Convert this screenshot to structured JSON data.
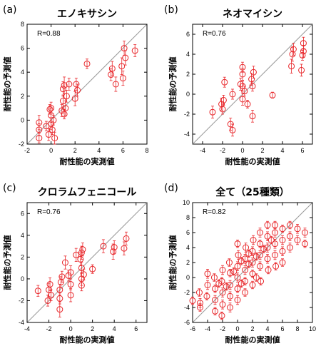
{
  "chart_data": [
    {
      "panel": "(a)",
      "type": "scatter",
      "title": "エノキサシン",
      "xlabel": "耐性能の実測値",
      "ylabel": "耐性能の予測値",
      "annotation": "R=0.88",
      "xlim": [
        -2,
        8
      ],
      "ylim": [
        -2,
        8
      ],
      "xticks": [
        -2,
        0,
        2,
        4,
        6,
        8
      ],
      "yticks": [
        -2,
        0,
        2,
        4,
        6,
        8
      ],
      "grid": false,
      "diagonal": true,
      "color": "#e8262a",
      "points": [
        {
          "x": -1.0,
          "y": -0.2,
          "err": 0.6
        },
        {
          "x": -1.0,
          "y": -0.8,
          "err": 0.5
        },
        {
          "x": -1.0,
          "y": -1.5,
          "err": 0.4
        },
        {
          "x": -0.4,
          "y": -0.5,
          "err": 0.4
        },
        {
          "x": -0.2,
          "y": -1.2,
          "err": 0.5
        },
        {
          "x": -0.1,
          "y": 0.9,
          "err": 0.4
        },
        {
          "x": 0.0,
          "y": 0.4,
          "err": 0.6
        },
        {
          "x": 0.0,
          "y": -0.3,
          "err": 0.5
        },
        {
          "x": 0.0,
          "y": 1.0,
          "err": 0.5
        },
        {
          "x": 0.2,
          "y": 0.0,
          "err": 0.4
        },
        {
          "x": 0.3,
          "y": -1.5,
          "err": 0.5
        },
        {
          "x": 0.1,
          "y": -0.8,
          "err": 0.4
        },
        {
          "x": 0.9,
          "y": 0.8,
          "err": 0.5
        },
        {
          "x": 1.0,
          "y": 1.6,
          "err": 0.5
        },
        {
          "x": 1.0,
          "y": 2.6,
          "err": 0.6
        },
        {
          "x": 1.1,
          "y": 2.9,
          "err": 0.7
        },
        {
          "x": 1.1,
          "y": 0.5,
          "err": 0.4
        },
        {
          "x": 1.2,
          "y": 1.0,
          "err": 0.6
        },
        {
          "x": 1.3,
          "y": 2.0,
          "err": 0.5
        },
        {
          "x": 1.5,
          "y": 3.0,
          "err": 0.5
        },
        {
          "x": 2.0,
          "y": 1.8,
          "err": 0.6
        },
        {
          "x": 2.1,
          "y": 3.0,
          "err": 0.5
        },
        {
          "x": 2.2,
          "y": 2.5,
          "err": 0.5
        },
        {
          "x": 3.0,
          "y": 4.7,
          "err": 0.4
        },
        {
          "x": 5.0,
          "y": 3.8,
          "err": 0.5
        },
        {
          "x": 5.1,
          "y": 4.3,
          "err": 0.6
        },
        {
          "x": 5.4,
          "y": 3.0,
          "err": 0.6
        },
        {
          "x": 5.9,
          "y": 4.5,
          "err": 0.7
        },
        {
          "x": 6.0,
          "y": 3.5,
          "err": 0.6
        },
        {
          "x": 6.1,
          "y": 6.0,
          "err": 0.6
        },
        {
          "x": 6.2,
          "y": 5.2,
          "err": 0.6
        },
        {
          "x": 7.0,
          "y": 5.8,
          "err": 0.5
        }
      ]
    },
    {
      "panel": "(b)",
      "type": "scatter",
      "title": "ネオマイシン",
      "xlabel": "耐性能の実測値",
      "ylabel": "耐性能の予測値",
      "annotation": "R=0.76",
      "xlim": [
        -5,
        7
      ],
      "ylim": [
        -5,
        7
      ],
      "xticks": [
        -4,
        -2,
        0,
        2,
        4,
        6
      ],
      "yticks": [
        -4,
        -2,
        0,
        2,
        4,
        6
      ],
      "grid": false,
      "diagonal": true,
      "color": "#e8262a",
      "points": [
        {
          "x": -3.0,
          "y": -1.8,
          "err": 0.6
        },
        {
          "x": -2.1,
          "y": -1.0,
          "err": 0.6
        },
        {
          "x": -2.0,
          "y": -1.5,
          "err": 0.5
        },
        {
          "x": -1.9,
          "y": -0.6,
          "err": 0.5
        },
        {
          "x": -1.8,
          "y": 1.2,
          "err": 0.5
        },
        {
          "x": -1.2,
          "y": -3.0,
          "err": 0.6
        },
        {
          "x": -1.0,
          "y": -3.6,
          "err": 0.6
        },
        {
          "x": -1.0,
          "y": 0.0,
          "err": 0.5
        },
        {
          "x": -0.2,
          "y": 1.0,
          "err": 0.6
        },
        {
          "x": 0.0,
          "y": 0.8,
          "err": 0.5
        },
        {
          "x": 0.0,
          "y": -0.5,
          "err": 0.6
        },
        {
          "x": 0.0,
          "y": 2.0,
          "err": 0.6
        },
        {
          "x": 0.0,
          "y": 2.7,
          "err": 0.5
        },
        {
          "x": 0.2,
          "y": 0.3,
          "err": 0.5
        },
        {
          "x": 0.5,
          "y": -1.0,
          "err": 0.4
        },
        {
          "x": 0.9,
          "y": 1.5,
          "err": 0.6
        },
        {
          "x": 1.0,
          "y": -2.2,
          "err": 0.6
        },
        {
          "x": 1.0,
          "y": 0.8,
          "err": 0.5
        },
        {
          "x": 1.1,
          "y": 2.2,
          "err": 0.6
        },
        {
          "x": 3.0,
          "y": -0.1,
          "err": 0.3
        },
        {
          "x": 4.9,
          "y": 2.8,
          "err": 0.7
        },
        {
          "x": 5.0,
          "y": 4.0,
          "err": 0.7
        },
        {
          "x": 5.1,
          "y": 4.5,
          "err": 0.6
        },
        {
          "x": 5.9,
          "y": 2.4,
          "err": 0.6
        },
        {
          "x": 6.0,
          "y": 3.9,
          "err": 0.5
        },
        {
          "x": 6.1,
          "y": 4.3,
          "err": 0.6
        },
        {
          "x": 6.1,
          "y": 5.1,
          "err": 0.6
        }
      ]
    },
    {
      "panel": "(c)",
      "type": "scatter",
      "title": "クロラムフェニコール",
      "xlabel": "耐性能の実測値",
      "ylabel": "耐性能の予測値",
      "annotation": "R=0.76",
      "xlim": [
        -4,
        7
      ],
      "ylim": [
        -4,
        7
      ],
      "xticks": [
        -4,
        -2,
        0,
        2,
        4,
        6
      ],
      "yticks": [
        -4,
        -2,
        0,
        2,
        4,
        6
      ],
      "grid": false,
      "diagonal": true,
      "color": "#e8262a",
      "points": [
        {
          "x": -3.0,
          "y": -1.1,
          "err": 0.5
        },
        {
          "x": -2.1,
          "y": -2.0,
          "err": 0.5
        },
        {
          "x": -2.0,
          "y": -1.0,
          "err": 0.6
        },
        {
          "x": -1.9,
          "y": -0.5,
          "err": 0.6
        },
        {
          "x": -1.8,
          "y": -1.5,
          "err": 0.5
        },
        {
          "x": -1.0,
          "y": -1.0,
          "err": 0.5
        },
        {
          "x": -1.0,
          "y": -1.8,
          "err": 0.5
        },
        {
          "x": -1.0,
          "y": -2.8,
          "err": 0.7
        },
        {
          "x": -0.9,
          "y": -0.3,
          "err": 0.5
        },
        {
          "x": -0.8,
          "y": 0.2,
          "err": 0.5
        },
        {
          "x": -0.5,
          "y": 1.5,
          "err": 0.6
        },
        {
          "x": -0.2,
          "y": 0.3,
          "err": 0.5
        },
        {
          "x": 0.0,
          "y": -1.5,
          "err": 0.6
        },
        {
          "x": 0.0,
          "y": -0.5,
          "err": 0.5
        },
        {
          "x": 0.0,
          "y": 0.6,
          "err": 0.6
        },
        {
          "x": 0.5,
          "y": 2.2,
          "err": 0.6
        },
        {
          "x": 0.9,
          "y": 1.8,
          "err": 0.6
        },
        {
          "x": 1.0,
          "y": 2.4,
          "err": 0.6
        },
        {
          "x": 1.0,
          "y": 1.0,
          "err": 0.5
        },
        {
          "x": 1.0,
          "y": 0.0,
          "err": 0.6
        },
        {
          "x": 1.0,
          "y": -0.6,
          "err": 0.5
        },
        {
          "x": 1.1,
          "y": 2.7,
          "err": 0.6
        },
        {
          "x": 1.2,
          "y": 0.4,
          "err": 0.5
        },
        {
          "x": 2.0,
          "y": 0.9,
          "err": 0.4
        },
        {
          "x": 3.0,
          "y": 3.0,
          "err": 0.6
        },
        {
          "x": 3.9,
          "y": 2.5,
          "err": 0.7
        },
        {
          "x": 4.0,
          "y": 2.9,
          "err": 0.6
        },
        {
          "x": 4.9,
          "y": 2.8,
          "err": 0.6
        },
        {
          "x": 5.1,
          "y": 3.7,
          "err": 0.6
        }
      ]
    },
    {
      "panel": "(d)",
      "type": "scatter",
      "title": "全て（25種類）",
      "xlabel": "耐性能の実測値",
      "ylabel": "耐性能の予測値",
      "annotation": "R=0.82",
      "xlim": [
        -6,
        10
      ],
      "ylim": [
        -6,
        10
      ],
      "xticks": [
        -6,
        -4,
        -2,
        0,
        2,
        4,
        6,
        8,
        10
      ],
      "yticks": [
        -6,
        -4,
        -2,
        0,
        2,
        4,
        6,
        8,
        10
      ],
      "grid": false,
      "diagonal": true,
      "color": "#e8262a",
      "points": [
        {
          "x": -6.0,
          "y": -3.1,
          "err": 0.5
        },
        {
          "x": -5.1,
          "y": -2.0,
          "err": 0.5
        },
        {
          "x": -5.0,
          "y": -3.4,
          "err": 0.6
        },
        {
          "x": -5.0,
          "y": -4.0,
          "err": 0.5
        },
        {
          "x": -4.0,
          "y": 0.5,
          "err": 0.6
        },
        {
          "x": -4.0,
          "y": -1.0,
          "err": 0.6
        },
        {
          "x": -4.1,
          "y": -2.5,
          "err": 0.5
        },
        {
          "x": -3.0,
          "y": -3.0,
          "err": 0.6
        },
        {
          "x": -3.0,
          "y": -1.5,
          "err": 0.5
        },
        {
          "x": -3.1,
          "y": 0.0,
          "err": 0.5
        },
        {
          "x": -3.0,
          "y": -4.5,
          "err": 0.5
        },
        {
          "x": -2.0,
          "y": -2.0,
          "err": 0.6
        },
        {
          "x": -2.0,
          "y": -3.6,
          "err": 0.6
        },
        {
          "x": -2.1,
          "y": -0.5,
          "err": 0.5
        },
        {
          "x": -2.0,
          "y": 1.0,
          "err": 0.6
        },
        {
          "x": -2.1,
          "y": -5.1,
          "err": 0.5
        },
        {
          "x": -1.0,
          "y": -1.0,
          "err": 0.6
        },
        {
          "x": -1.0,
          "y": -2.5,
          "err": 0.6
        },
        {
          "x": -1.0,
          "y": 0.6,
          "err": 0.5
        },
        {
          "x": -1.1,
          "y": 2.0,
          "err": 0.5
        },
        {
          "x": -1.0,
          "y": -4.0,
          "err": 0.6
        },
        {
          "x": 0.0,
          "y": 0.0,
          "err": 0.6
        },
        {
          "x": 0.0,
          "y": 1.5,
          "err": 0.6
        },
        {
          "x": 0.0,
          "y": -1.5,
          "err": 0.5
        },
        {
          "x": 0.1,
          "y": 3.0,
          "err": 0.6
        },
        {
          "x": 0.0,
          "y": -3.0,
          "err": 0.6
        },
        {
          "x": 0.0,
          "y": 4.5,
          "err": 0.5
        },
        {
          "x": 1.0,
          "y": 1.0,
          "err": 0.6
        },
        {
          "x": 1.0,
          "y": 2.5,
          "err": 0.6
        },
        {
          "x": 1.0,
          "y": -0.5,
          "err": 0.5
        },
        {
          "x": 1.1,
          "y": 4.0,
          "err": 0.6
        },
        {
          "x": 1.0,
          "y": -2.0,
          "err": 0.5
        },
        {
          "x": 2.0,
          "y": 2.0,
          "err": 0.6
        },
        {
          "x": 2.0,
          "y": 3.5,
          "err": 0.6
        },
        {
          "x": 2.0,
          "y": 0.5,
          "err": 0.5
        },
        {
          "x": 2.1,
          "y": 5.0,
          "err": 0.6
        },
        {
          "x": 2.0,
          "y": -1.0,
          "err": 0.5
        },
        {
          "x": 3.0,
          "y": 3.0,
          "err": 0.6
        },
        {
          "x": 3.0,
          "y": 1.5,
          "err": 0.6
        },
        {
          "x": 3.0,
          "y": 4.5,
          "err": 0.5
        },
        {
          "x": 3.0,
          "y": 6.0,
          "err": 0.6
        },
        {
          "x": 3.1,
          "y": -0.5,
          "err": 0.5
        },
        {
          "x": 4.0,
          "y": 4.0,
          "err": 0.6
        },
        {
          "x": 4.0,
          "y": 2.5,
          "err": 0.6
        },
        {
          "x": 4.0,
          "y": 5.5,
          "err": 0.6
        },
        {
          "x": 4.1,
          "y": 1.0,
          "err": 0.5
        },
        {
          "x": 4.0,
          "y": 7.0,
          "err": 0.5
        },
        {
          "x": 5.0,
          "y": 4.5,
          "err": 0.6
        },
        {
          "x": 5.0,
          "y": 3.0,
          "err": 0.6
        },
        {
          "x": 5.0,
          "y": 6.0,
          "err": 0.6
        },
        {
          "x": 5.1,
          "y": 1.5,
          "err": 0.5
        },
        {
          "x": 5.0,
          "y": 7.0,
          "err": 0.5
        },
        {
          "x": 6.0,
          "y": 5.0,
          "err": 0.6
        },
        {
          "x": 6.0,
          "y": 3.5,
          "err": 0.6
        },
        {
          "x": 6.0,
          "y": 6.5,
          "err": 0.5
        },
        {
          "x": 6.0,
          "y": 2.0,
          "err": 0.5
        },
        {
          "x": 7.0,
          "y": 5.5,
          "err": 0.6
        },
        {
          "x": 7.0,
          "y": 4.0,
          "err": 0.6
        },
        {
          "x": 7.0,
          "y": 7.0,
          "err": 0.5
        },
        {
          "x": 8.0,
          "y": 5.0,
          "err": 0.6
        },
        {
          "x": 8.0,
          "y": 6.5,
          "err": 0.6
        },
        {
          "x": 9.0,
          "y": 6.0,
          "err": 0.6
        },
        {
          "x": 9.0,
          "y": 4.5,
          "err": 0.5
        },
        {
          "x": -0.5,
          "y": 0.8,
          "err": 0.5
        },
        {
          "x": 0.5,
          "y": -0.8,
          "err": 0.5
        },
        {
          "x": 1.5,
          "y": 1.8,
          "err": 0.5
        },
        {
          "x": 2.5,
          "y": 2.8,
          "err": 0.5
        },
        {
          "x": -1.5,
          "y": -1.2,
          "err": 0.5
        },
        {
          "x": 3.5,
          "y": 3.8,
          "err": 0.5
        },
        {
          "x": 4.5,
          "y": 5.0,
          "err": 0.5
        },
        {
          "x": -2.5,
          "y": -0.8,
          "err": 0.5
        },
        {
          "x": 1.5,
          "y": 3.2,
          "err": 0.5
        },
        {
          "x": 0.5,
          "y": 2.2,
          "err": 0.5
        },
        {
          "x": 2.5,
          "y": 0.0,
          "err": 0.5
        }
      ]
    }
  ]
}
